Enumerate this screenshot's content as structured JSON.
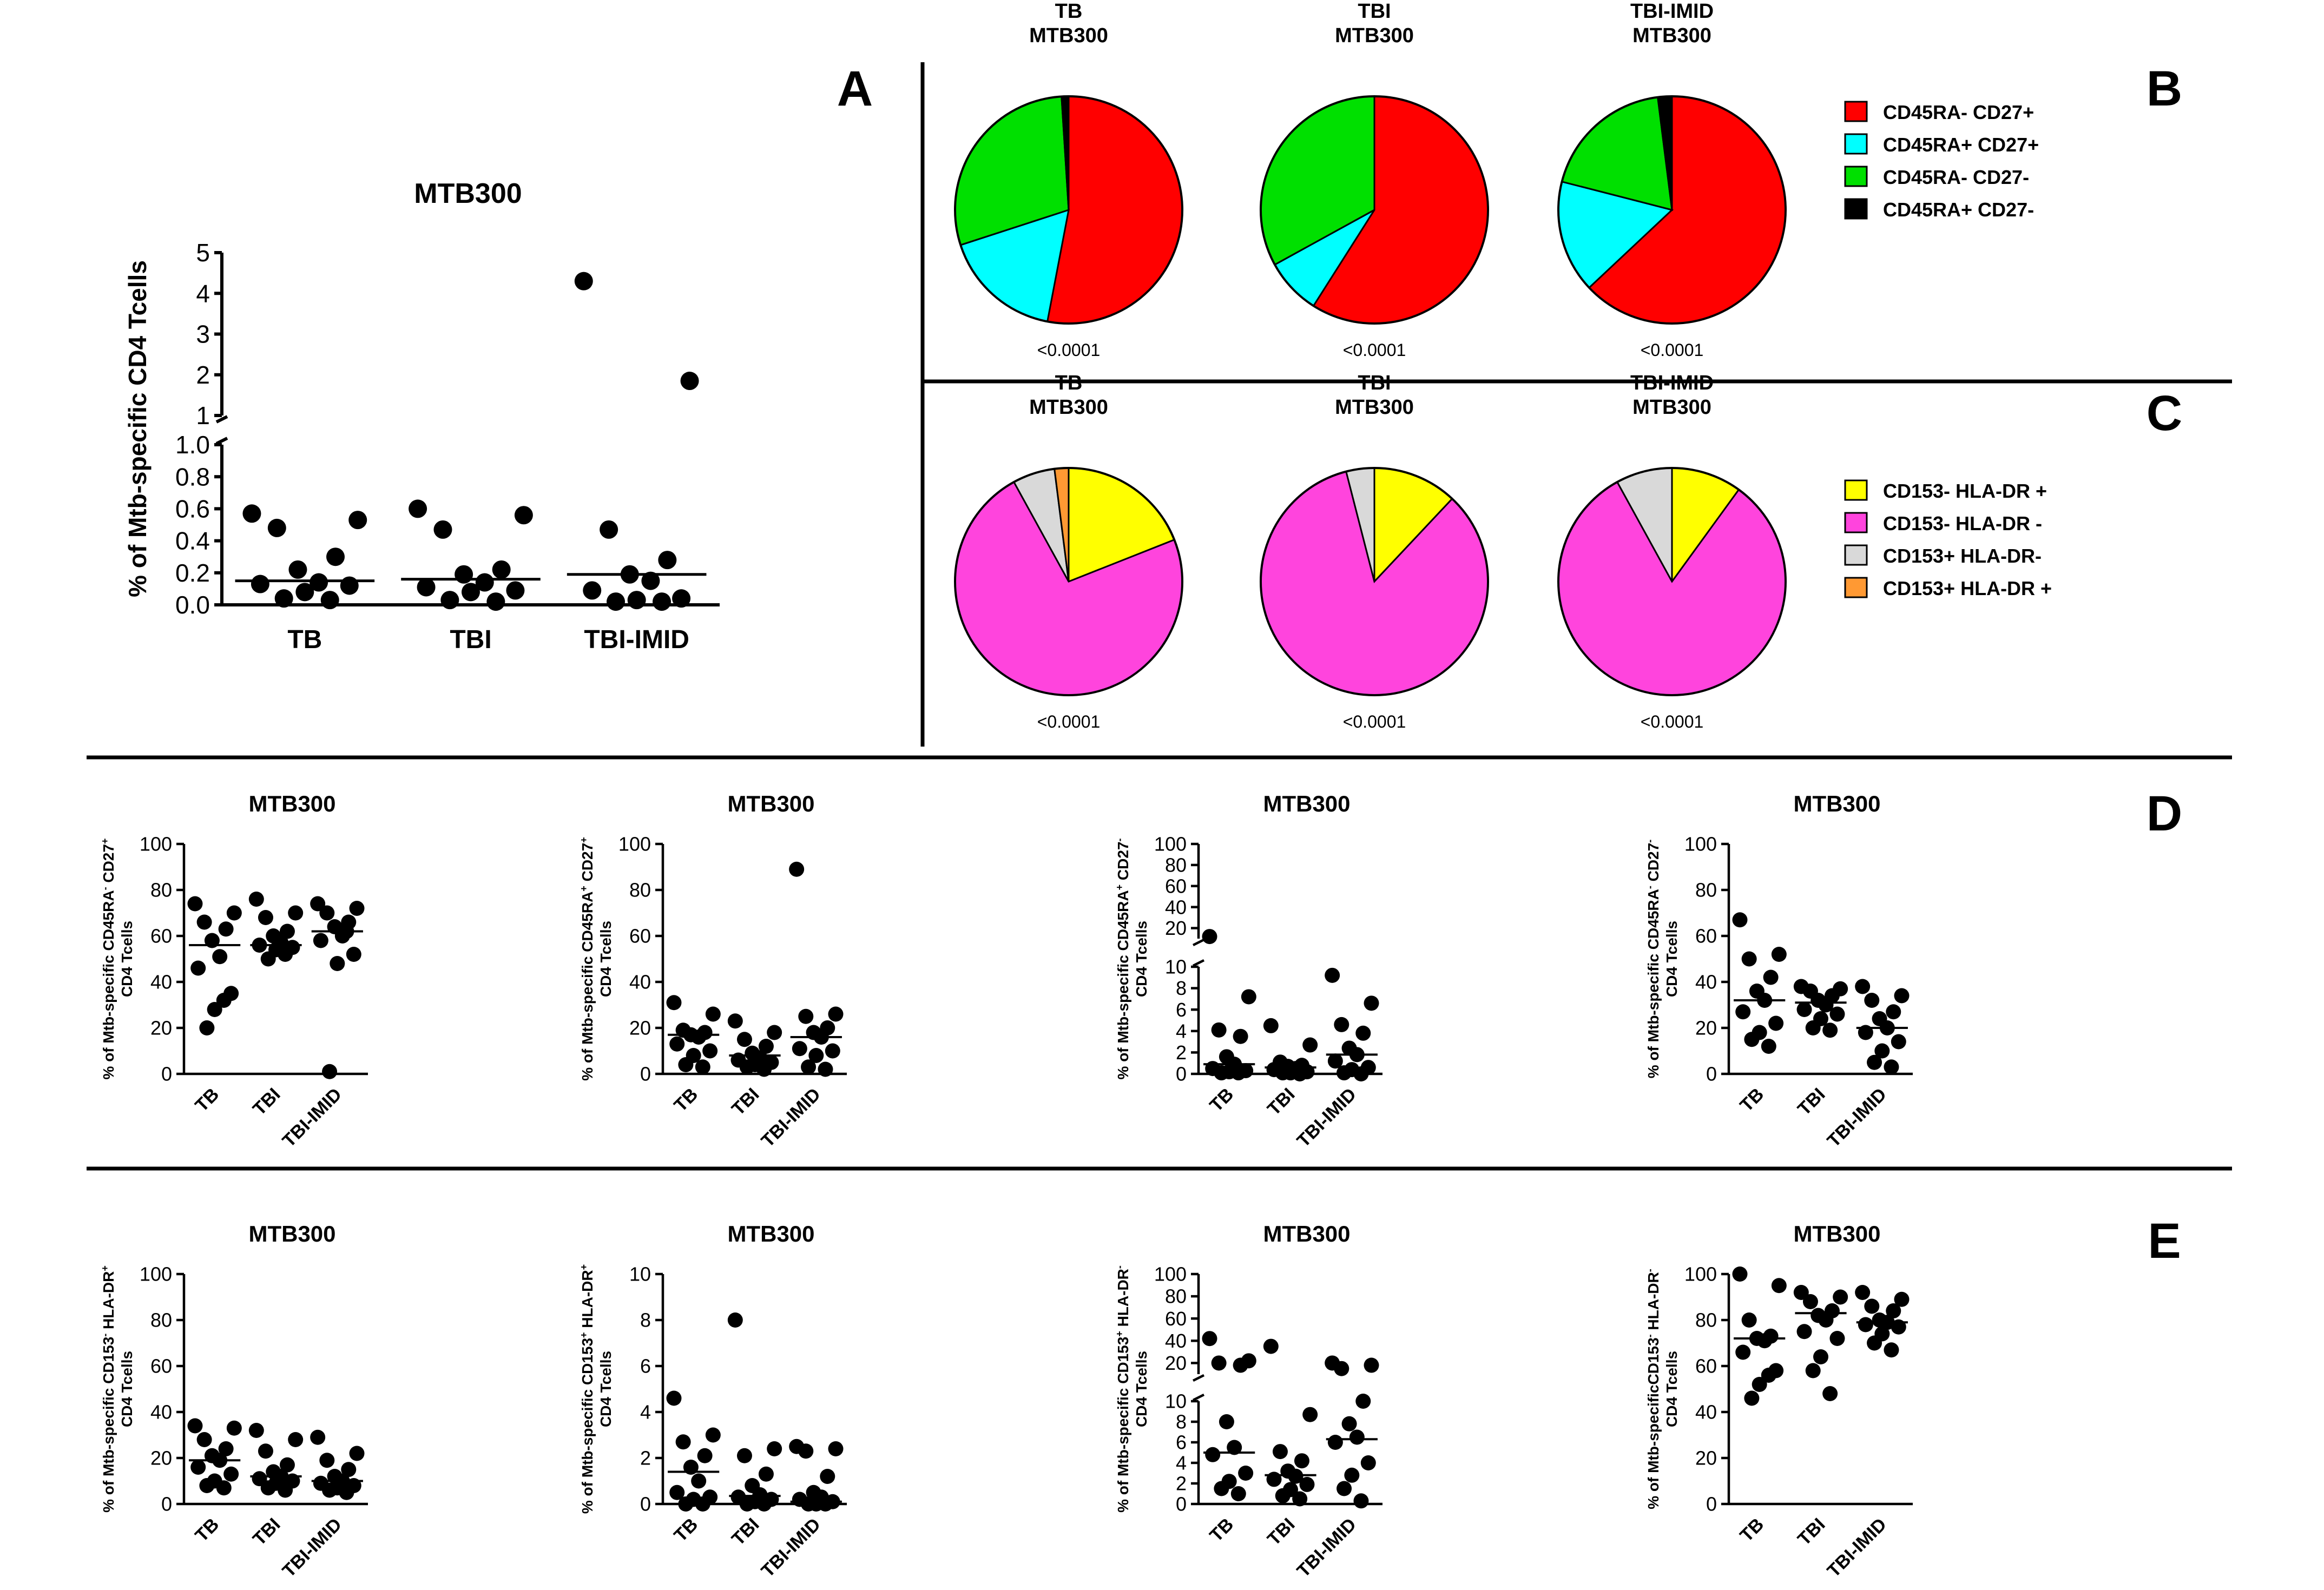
{
  "panel_letters": [
    "A",
    "B",
    "C",
    "D",
    "E"
  ],
  "chart_data": [
    {
      "id": "A",
      "type": "scatter",
      "title": "MTB300",
      "ylabel": "% of Mtb-specific CD4 Tcells",
      "categories": [
        "TB",
        "TBI",
        "TBI-IMID"
      ],
      "ysplit": true,
      "lower_range": [
        0,
        1
      ],
      "lower_ticks": [
        0.0,
        0.2,
        0.4,
        0.6,
        0.8,
        1.0
      ],
      "upper_range": [
        1,
        5
      ],
      "upper_ticks": [
        1,
        2,
        3,
        4,
        5
      ],
      "medians": [
        0.15,
        0.16,
        0.19
      ],
      "points": [
        [
          0.57,
          0.53,
          0.48,
          0.3,
          0.22,
          0.14,
          0.13,
          0.12,
          0.08,
          0.04,
          0.03
        ],
        [
          0.6,
          0.56,
          0.47,
          0.22,
          0.19,
          0.14,
          0.11,
          0.09,
          0.08,
          0.03,
          0.02
        ],
        [
          4.3,
          1.85,
          0.47,
          0.28,
          0.19,
          0.15,
          0.09,
          0.04,
          0.03,
          0.02,
          0.02
        ]
      ]
    },
    {
      "id": "B",
      "type": "pie",
      "legend": [
        {
          "label": "CD45RA- CD27+",
          "color": "#ff0000"
        },
        {
          "label": "CD45RA+ CD27+",
          "color": "#00ffff"
        },
        {
          "label": "CD45RA- CD27-",
          "color": "#00e000"
        },
        {
          "label": "CD45RA+ CD27-",
          "color": "#000000"
        }
      ],
      "pies": [
        {
          "title": [
            "TB",
            "MTB300"
          ],
          "pvalue": "<0.0001",
          "values": [
            0.53,
            0.17,
            0.29,
            0.01
          ]
        },
        {
          "title": [
            "TBI",
            "MTB300"
          ],
          "pvalue": "<0.0001",
          "values": [
            0.59,
            0.08,
            0.33,
            0.0
          ]
        },
        {
          "title": [
            "TBI-IMID",
            "MTB300"
          ],
          "pvalue": "<0.0001",
          "values": [
            0.63,
            0.16,
            0.19,
            0.02
          ]
        }
      ]
    },
    {
      "id": "C",
      "type": "pie",
      "legend": [
        {
          "label": "CD153- HLA-DR +",
          "color": "#ffff00"
        },
        {
          "label": "CD153- HLA-DR -",
          "color": "#ff44dd"
        },
        {
          "label": "CD153+ HLA-DR-",
          "color": "#d9d9d9"
        },
        {
          "label": "CD153+ HLA-DR +",
          "color": "#ff9933"
        }
      ],
      "pies": [
        {
          "title": [
            "TB",
            "MTB300"
          ],
          "pvalue": "<0.0001",
          "values": [
            0.19,
            0.73,
            0.06,
            0.02
          ]
        },
        {
          "title": [
            "TBI",
            "MTB300"
          ],
          "pvalue": "<0.0001",
          "values": [
            0.12,
            0.84,
            0.04,
            0.0
          ]
        },
        {
          "title": [
            "TBI-IMID",
            "MTB300"
          ],
          "pvalue": "<0.0001",
          "values": [
            0.1,
            0.82,
            0.08,
            0.0
          ]
        }
      ]
    },
    {
      "id": "D1",
      "type": "scatter",
      "title": "MTB300",
      "ylabel": [
        "% of Mtb-specific CD45RA",
        "-",
        " CD27",
        "+",
        "CD4 Tcells"
      ],
      "categories": [
        "TB",
        "TBI",
        "TBI-IMID"
      ],
      "ysplit": false,
      "ylim": [
        0,
        100
      ],
      "ticks": [
        0,
        20,
        40,
        60,
        80,
        100
      ],
      "medians": [
        56,
        56,
        62
      ],
      "points": [
        [
          74,
          70,
          66,
          63,
          58,
          51,
          46,
          35,
          28,
          20,
          32
        ],
        [
          76,
          70,
          68,
          62,
          60,
          57,
          56,
          55,
          54,
          50,
          52
        ],
        [
          74,
          72,
          70,
          66,
          64,
          60,
          58,
          52,
          48,
          1,
          62
        ]
      ]
    },
    {
      "id": "D2",
      "type": "scatter",
      "title": "MTB300",
      "ylabel": [
        "% of Mtb-specific CD45RA",
        "+",
        " CD27",
        "+",
        "CD4 Tcells"
      ],
      "categories": [
        "TB",
        "TBI",
        "TBI-IMID"
      ],
      "ysplit": false,
      "ylim": [
        0,
        100
      ],
      "ticks": [
        0,
        20,
        40,
        60,
        80,
        100
      ],
      "medians": [
        17,
        8,
        16
      ],
      "points": [
        [
          31,
          26,
          19,
          18,
          17,
          16,
          13,
          10,
          8,
          4,
          3
        ],
        [
          23,
          18,
          15,
          12,
          9,
          7,
          6,
          5,
          4,
          3,
          2
        ],
        [
          89,
          26,
          25,
          20,
          18,
          16,
          11,
          10,
          8,
          3,
          2
        ]
      ]
    },
    {
      "id": "D3",
      "type": "scatter",
      "title": "MTB300",
      "ylabel": [
        "% of Mtb-specific CD45RA",
        "+",
        " CD27",
        "-",
        "CD4 Tcells"
      ],
      "categories": [
        "TB",
        "TBI",
        "TBI-IMID"
      ],
      "ysplit": true,
      "lower_range": [
        0,
        10
      ],
      "lower_ticks": [
        0,
        2,
        4,
        6,
        8,
        10
      ],
      "upper_range": [
        10,
        100
      ],
      "upper_ticks": [
        20,
        40,
        60,
        80,
        100
      ],
      "medians": [
        0.9,
        0.6,
        1.8
      ],
      "points": [
        [
          12,
          7.2,
          4.1,
          3.5,
          1.6,
          0.9,
          0.5,
          0.3,
          0.2,
          0.1,
          0.1
        ],
        [
          4.5,
          2.7,
          1.1,
          0.8,
          0.7,
          0.5,
          0.4,
          0.2,
          0.1,
          0.1,
          0.0
        ],
        [
          9.2,
          6.6,
          4.6,
          3.8,
          2.4,
          1.8,
          1.2,
          0.6,
          0.4,
          0.1,
          0.0
        ]
      ]
    },
    {
      "id": "D4",
      "type": "scatter",
      "title": "MTB300",
      "ylabel": [
        "% of Mtb-specific CD45RA",
        "-",
        " CD27",
        "-",
        "CD4 Tcells"
      ],
      "categories": [
        "TB",
        "TBI",
        "TBI-IMID"
      ],
      "ysplit": false,
      "ylim": [
        0,
        100
      ],
      "ticks": [
        0,
        20,
        40,
        60,
        80,
        100
      ],
      "medians": [
        32,
        31,
        20
      ],
      "points": [
        [
          67,
          52,
          50,
          42,
          36,
          32,
          27,
          22,
          18,
          15,
          12
        ],
        [
          38,
          37,
          36,
          34,
          32,
          30,
          28,
          26,
          24,
          20,
          19
        ],
        [
          38,
          34,
          32,
          27,
          24,
          20,
          18,
          14,
          10,
          5,
          3
        ]
      ]
    },
    {
      "id": "E1",
      "type": "scatter",
      "title": "MTB300",
      "ylabel": [
        "% of Mtb-specific CD153",
        "-",
        " HLA-DR",
        "+",
        "CD4 Tcells"
      ],
      "categories": [
        "TB",
        "TBI",
        "TBI-IMID"
      ],
      "ysplit": false,
      "ylim": [
        0,
        100
      ],
      "ticks": [
        0,
        20,
        40,
        60,
        80,
        100
      ],
      "medians": [
        19,
        12,
        10
      ],
      "points": [
        [
          34,
          33,
          28,
          24,
          21,
          19,
          16,
          13,
          10,
          8,
          7
        ],
        [
          32,
          28,
          23,
          17,
          14,
          12,
          11,
          10,
          9,
          7,
          6
        ],
        [
          29,
          22,
          19,
          15,
          12,
          10,
          9,
          8,
          7,
          6,
          5
        ]
      ]
    },
    {
      "id": "E2",
      "type": "scatter",
      "title": "MTB300",
      "ylabel": [
        "% of Mtb-specific CD153",
        "+",
        " HLA-DR",
        "+",
        "CD4 Tcells"
      ],
      "categories": [
        "TB",
        "TBI",
        "TBI-IMID"
      ],
      "ysplit": false,
      "ylim": [
        0,
        10
      ],
      "ticks": [
        0,
        2,
        4,
        6,
        8,
        10
      ],
      "medians": [
        1.4,
        0.35,
        0.1
      ],
      "points": [
        [
          4.6,
          3.0,
          2.7,
          2.1,
          1.6,
          1.0,
          0.5,
          0.3,
          0.2,
          0.0,
          0.0
        ],
        [
          8.0,
          2.4,
          2.1,
          1.3,
          0.8,
          0.4,
          0.3,
          0.2,
          0.1,
          0.0,
          0.0
        ],
        [
          2.5,
          2.4,
          2.3,
          1.2,
          0.5,
          0.3,
          0.2,
          0.1,
          0.0,
          0.0,
          0.0
        ]
      ]
    },
    {
      "id": "E3",
      "type": "scatter",
      "title": "MTB300",
      "ylabel": [
        "% of Mtb-specific CD153",
        "+",
        " HLA-DR",
        "-",
        "CD4 Tcells"
      ],
      "categories": [
        "TB",
        "TBI",
        "TBI-IMID"
      ],
      "ysplit": true,
      "lower_range": [
        0,
        10
      ],
      "lower_ticks": [
        0,
        2,
        4,
        6,
        8,
        10
      ],
      "upper_range": [
        10,
        100
      ],
      "upper_ticks": [
        20,
        40,
        60,
        80,
        100
      ],
      "medians": [
        5.0,
        2.8,
        6.3
      ],
      "points": [
        [
          42,
          22,
          20,
          18,
          8,
          5.5,
          4.8,
          3.0,
          2.2,
          1.5,
          1.0
        ],
        [
          35,
          8.7,
          5.1,
          4.2,
          3.2,
          2.7,
          2.4,
          1.9,
          1.4,
          0.8,
          0.5
        ],
        [
          20,
          18,
          15,
          10,
          7.8,
          6.5,
          6.0,
          4.0,
          2.8,
          1.5,
          0.3
        ]
      ]
    },
    {
      "id": "E4",
      "type": "scatter",
      "title": "MTB300",
      "ylabel": [
        "% of Mtb-specificCD153",
        "-",
        " HLA-DR",
        "-",
        "CD4 Tcells"
      ],
      "categories": [
        "TB",
        "TBI",
        "TBI-IMID"
      ],
      "ysplit": false,
      "ylim": [
        0,
        100
      ],
      "ticks": [
        0,
        20,
        40,
        60,
        80,
        100
      ],
      "medians": [
        72,
        83,
        79
      ],
      "points": [
        [
          100,
          95,
          80,
          73,
          72,
          71,
          66,
          58,
          52,
          46,
          56
        ],
        [
          92,
          90,
          88,
          84,
          82,
          80,
          75,
          72,
          64,
          58,
          48
        ],
        [
          92,
          89,
          86,
          84,
          80,
          79,
          78,
          77,
          74,
          70,
          67
        ]
      ]
    }
  ]
}
